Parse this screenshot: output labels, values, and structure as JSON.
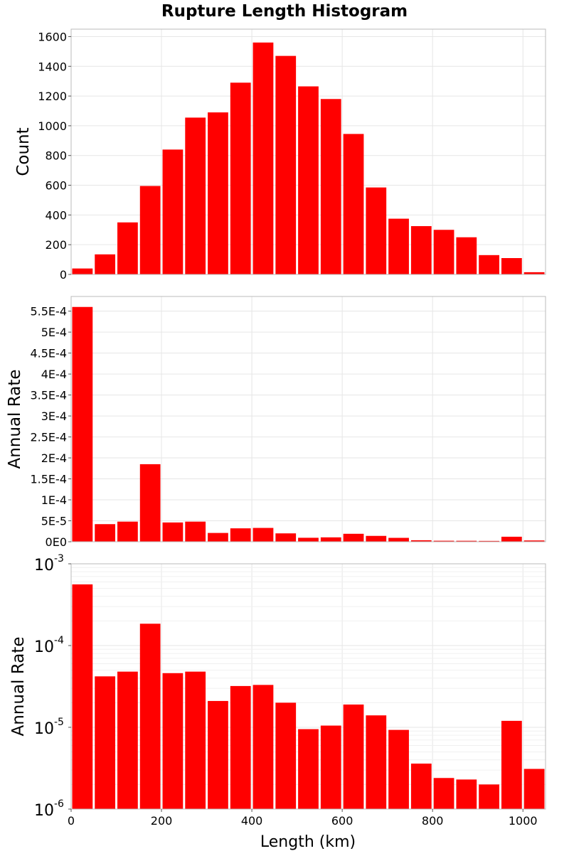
{
  "title": "Rupture Length Histogram",
  "xlabel": "Length (km)",
  "chart_data": [
    {
      "type": "bar",
      "ylabel": "Count",
      "x_bin_starts": [
        0,
        50,
        100,
        150,
        200,
        250,
        300,
        350,
        400,
        450,
        500,
        550,
        600,
        650,
        700,
        750,
        800,
        850,
        900,
        950,
        1000
      ],
      "bin_width": 50,
      "xlim": [
        0,
        1050
      ],
      "ylim": [
        0,
        1650
      ],
      "yscale": "linear",
      "y_ticks": [
        0,
        200,
        400,
        600,
        800,
        1000,
        1200,
        1400,
        1600
      ],
      "y_tick_labels": [
        "0",
        "200",
        "400",
        "600",
        "800",
        "1000",
        "1200",
        "1400",
        "1600"
      ],
      "values": [
        40,
        135,
        350,
        595,
        840,
        1055,
        1090,
        1290,
        1560,
        1470,
        1265,
        1180,
        945,
        585,
        375,
        325,
        300,
        250,
        130,
        110,
        15
      ],
      "color": "#ff0000",
      "grid": true
    },
    {
      "type": "bar",
      "ylabel": "Annual Rate",
      "x_bin_starts": [
        0,
        50,
        100,
        150,
        200,
        250,
        300,
        350,
        400,
        450,
        500,
        550,
        600,
        650,
        700,
        750,
        800,
        850,
        900,
        950,
        1000
      ],
      "bin_width": 50,
      "xlim": [
        0,
        1050
      ],
      "ylim": [
        0,
        0.000585
      ],
      "yscale": "linear",
      "y_ticks": [
        0,
        5e-05,
        0.0001,
        0.00015,
        0.0002,
        0.00025,
        0.0003,
        0.00035,
        0.0004,
        0.00045,
        0.0005,
        0.00055
      ],
      "y_tick_labels": [
        "0E0",
        "5E-5",
        "1E-4",
        "1.5E-4",
        "2E-4",
        "2.5E-4",
        "3E-4",
        "3.5E-4",
        "4E-4",
        "4.5E-4",
        "5E-4",
        "5.5E-4"
      ],
      "values": [
        0.00056,
        4.2e-05,
        4.8e-05,
        0.000185,
        4.6e-05,
        4.8e-05,
        2.1e-05,
        3.2e-05,
        3.3e-05,
        2e-05,
        9.5e-06,
        1.05e-05,
        1.9e-05,
        1.4e-05,
        9.3e-06,
        3.6e-06,
        2.4e-06,
        2.3e-06,
        2e-06,
        1.2e-05,
        3.1e-06
      ],
      "color": "#ff0000",
      "grid": true
    },
    {
      "type": "bar",
      "ylabel": "Annual Rate",
      "x_bin_starts": [
        0,
        50,
        100,
        150,
        200,
        250,
        300,
        350,
        400,
        450,
        500,
        550,
        600,
        650,
        700,
        750,
        800,
        850,
        900,
        950,
        1000
      ],
      "bin_width": 50,
      "xlim": [
        0,
        1050
      ],
      "ylim": [
        1e-06,
        0.001
      ],
      "yscale": "log",
      "y_tick_bases": [
        "10",
        "10",
        "10",
        "10"
      ],
      "y_tick_exponents": [
        "-6",
        "-5",
        "-4",
        "-3"
      ],
      "x_ticks": [
        0,
        200,
        400,
        600,
        800,
        1000
      ],
      "x_tick_labels": [
        "0",
        "200",
        "400",
        "600",
        "800",
        "1000"
      ],
      "values": [
        0.00056,
        4.2e-05,
        4.8e-05,
        0.000185,
        4.6e-05,
        4.8e-05,
        2.1e-05,
        3.2e-05,
        3.3e-05,
        2e-05,
        9.5e-06,
        1.05e-05,
        1.9e-05,
        1.4e-05,
        9.3e-06,
        3.6e-06,
        2.4e-06,
        2.3e-06,
        2e-06,
        1.2e-05,
        3.1e-06
      ],
      "color": "#ff0000",
      "grid": true
    }
  ]
}
